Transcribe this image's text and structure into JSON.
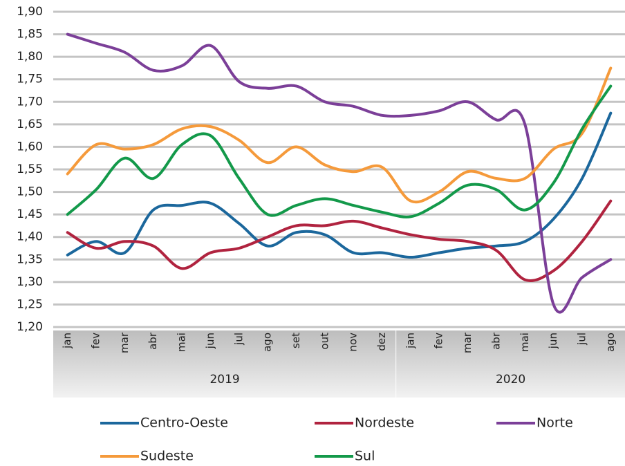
{
  "chart_data": {
    "type": "line",
    "categories": [
      "jan",
      "fev",
      "mar",
      "abr",
      "mai",
      "jun",
      "jul",
      "ago",
      "set",
      "out",
      "nov",
      "dez",
      "jan",
      "fev",
      "mar",
      "abr",
      "mai",
      "jun",
      "jul",
      "ago"
    ],
    "category_groups": [
      {
        "label": "2019",
        "size": 12
      },
      {
        "label": "2020",
        "size": 8
      }
    ],
    "ylim": [
      1.2,
      1.9
    ],
    "yticks": [
      {
        "value": 1.2,
        "label": "1,20"
      },
      {
        "value": 1.25,
        "label": "1,25"
      },
      {
        "value": 1.3,
        "label": "1,30"
      },
      {
        "value": 1.35,
        "label": "1,35"
      },
      {
        "value": 1.4,
        "label": "1,40"
      },
      {
        "value": 1.45,
        "label": "1,45"
      },
      {
        "value": 1.5,
        "label": "1,50"
      },
      {
        "value": 1.55,
        "label": "1,55"
      },
      {
        "value": 1.6,
        "label": "1,60"
      },
      {
        "value": 1.65,
        "label": "1,65"
      },
      {
        "value": 1.7,
        "label": "1,70"
      },
      {
        "value": 1.75,
        "label": "1,75"
      },
      {
        "value": 1.8,
        "label": "1,80"
      },
      {
        "value": 1.85,
        "label": "1,85"
      },
      {
        "value": 1.9,
        "label": "1,90"
      }
    ],
    "grid": true,
    "series": [
      {
        "name": "Centro-Oeste",
        "color": "#1b679c",
        "values": [
          1.36,
          1.39,
          1.365,
          1.46,
          1.47,
          1.475,
          1.43,
          1.38,
          1.41,
          1.405,
          1.365,
          1.365,
          1.355,
          1.365,
          1.375,
          1.38,
          1.39,
          1.44,
          1.53,
          1.675
        ]
      },
      {
        "name": "Nordeste",
        "color": "#b0233f",
        "values": [
          1.41,
          1.375,
          1.39,
          1.38,
          1.33,
          1.365,
          1.375,
          1.4,
          1.425,
          1.425,
          1.435,
          1.42,
          1.405,
          1.395,
          1.39,
          1.37,
          1.305,
          1.325,
          1.39,
          1.48
        ]
      },
      {
        "name": "Norte",
        "color": "#7b3f98",
        "values": [
          1.85,
          1.83,
          1.81,
          1.77,
          1.78,
          1.825,
          1.745,
          1.73,
          1.735,
          1.7,
          1.69,
          1.67,
          1.67,
          1.68,
          1.7,
          1.66,
          1.65,
          1.25,
          1.31,
          1.35
        ]
      },
      {
        "name": "Sudeste",
        "color": "#f59a3b",
        "values": [
          1.54,
          1.605,
          1.595,
          1.605,
          1.64,
          1.645,
          1.615,
          1.565,
          1.6,
          1.56,
          1.545,
          1.555,
          1.48,
          1.5,
          1.545,
          1.53,
          1.53,
          1.595,
          1.63,
          1.775
        ]
      },
      {
        "name": "Sul",
        "color": "#13994a",
        "values": [
          1.45,
          1.505,
          1.575,
          1.53,
          1.605,
          1.625,
          1.53,
          1.45,
          1.47,
          1.485,
          1.47,
          1.455,
          1.445,
          1.475,
          1.515,
          1.505,
          1.46,
          1.52,
          1.64,
          1.735
        ]
      }
    ]
  }
}
